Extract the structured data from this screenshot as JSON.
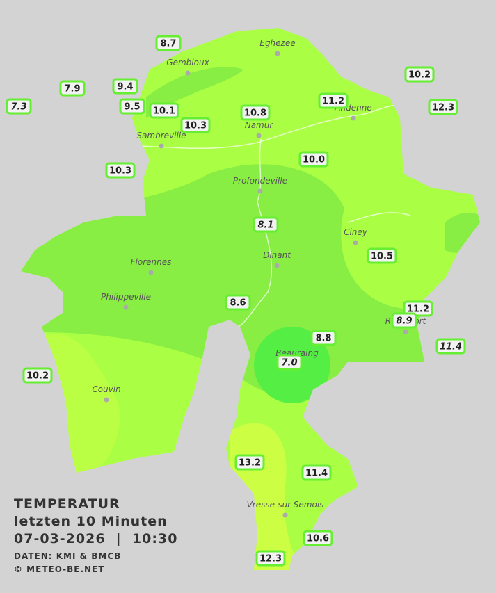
{
  "title": {
    "heading": "TEMPERATUR",
    "subheading": "letzten 10 Minuten",
    "timestamp": "07-03-2026  |  10:30",
    "source": "DATEN: KMI & BMCB",
    "copyright": "© METEO-BE.NET"
  },
  "towns": [
    "Eghezee",
    "Gembloux",
    "Andenne",
    "Namur",
    "Sambreville",
    "Profondeville",
    "Ciney",
    "Dinant",
    "Florennes",
    "Philippeville",
    "Beauraing",
    "Rochefort",
    "Couvin",
    "Vresse-sur-Semois"
  ],
  "stations": [
    {
      "label": "8.7",
      "italic": false
    },
    {
      "label": "7.9",
      "italic": false
    },
    {
      "label": "9.4",
      "italic": false
    },
    {
      "label": "7.3",
      "italic": true
    },
    {
      "label": "9.5",
      "italic": false
    },
    {
      "label": "10.1",
      "italic": false
    },
    {
      "label": "10.3",
      "italic": false
    },
    {
      "label": "10.8",
      "italic": false
    },
    {
      "label": "11.2",
      "italic": false
    },
    {
      "label": "10.2",
      "italic": false
    },
    {
      "label": "12.3",
      "italic": false
    },
    {
      "label": "10.3",
      "italic": false
    },
    {
      "label": "10.0",
      "italic": false
    },
    {
      "label": "8.1",
      "italic": true
    },
    {
      "label": "10.5",
      "italic": false
    },
    {
      "label": "8.6",
      "italic": false
    },
    {
      "label": "11.2",
      "italic": false
    },
    {
      "label": "8.9",
      "italic": true
    },
    {
      "label": "11.4",
      "italic": true
    },
    {
      "label": "8.8",
      "italic": false
    },
    {
      "label": "7.0",
      "italic": true
    },
    {
      "label": "10.2",
      "italic": false
    },
    {
      "label": "13.2",
      "italic": false
    },
    {
      "label": "11.4",
      "italic": false
    },
    {
      "label": "10.6",
      "italic": false
    },
    {
      "label": "12.3",
      "italic": false
    }
  ]
}
